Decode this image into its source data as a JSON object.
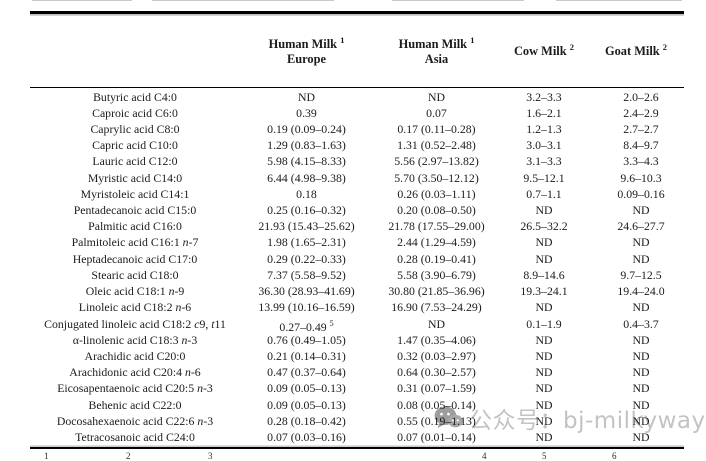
{
  "colors": {
    "rule": "#000000",
    "text": "#1b1b1b",
    "watermark_text": "#c3c3c3",
    "watermark_icon": "#8d8d8d"
  },
  "table": {
    "header": {
      "cols": [
        {
          "line1": "Human Milk",
          "sup": "1",
          "line2": "Europe"
        },
        {
          "line1": "Human Milk",
          "sup": "1",
          "line2": "Asia"
        },
        {
          "line1": "Cow Milk",
          "sup": "2",
          "line2": ""
        },
        {
          "line1": "Goat Milk",
          "sup": "2",
          "line2": ""
        }
      ]
    },
    "rows": [
      {
        "label": "Butyric acid C4:0",
        "values": [
          "ND",
          "ND",
          "3.2–3.3",
          "2.0–2.6"
        ]
      },
      {
        "label": "Caproic acid C6:0",
        "values": [
          "0.39",
          "0.07",
          "1.6–2.1",
          "2.4–2.9"
        ]
      },
      {
        "label": "Caprylic acid C8:0",
        "values": [
          "0.19 (0.09–0.24)",
          "0.17 (0.11–0.28)",
          "1.2–1.3",
          "2.7–2.7"
        ]
      },
      {
        "label": "Capric acid C10:0",
        "values": [
          "1.29 (0.83–1.63)",
          "1.31 (0.52–2.48)",
          "3.0–3.1",
          "8.4–9.7"
        ]
      },
      {
        "label": "Lauric acid C12:0",
        "values": [
          "5.98 (4.15–8.33)",
          "5.56 (2.97–13.82)",
          "3.1–3.3",
          "3.3–4.3"
        ]
      },
      {
        "label": "Myristic acid C14:0",
        "values": [
          "6.44 (4.98–9.38)",
          "5.70 (3.50–12.12)",
          "9.5–12.1",
          "9.6–10.3"
        ]
      },
      {
        "label": "Myristoleic acid C14:1",
        "values": [
          "0.18",
          "0.26 (0.03–1.11)",
          "0.7–1.1",
          "0.09–0.16"
        ]
      },
      {
        "label": "Pentadecanoic acid C15:0",
        "values": [
          "0.25 (0.16–0.32)",
          "0.20 (0.08–0.50)",
          "ND",
          "ND"
        ]
      },
      {
        "label": "Palmitic acid C16:0",
        "values": [
          "21.93 (15.43–25.62)",
          "21.78 (17.55–29.00)",
          "26.5–32.2",
          "24.6–27.7"
        ]
      },
      {
        "label": "Palmitoleic acid C16:1 n-7",
        "values": [
          "1.98 (1.65–2.31)",
          "2.44 (1.29–4.59)",
          "ND",
          "ND"
        ]
      },
      {
        "label": "Heptadecanoic acid C17:0",
        "values": [
          "0.29 (0.22–0.33)",
          "0.28 (0.19–0.41)",
          "ND",
          "ND"
        ]
      },
      {
        "label": "Stearic acid C18:0",
        "values": [
          "7.37 (5.58–9.52)",
          "5.58 (3.90–6.79)",
          "8.9–14.6",
          "9.7–12.5"
        ]
      },
      {
        "label": "Oleic acid C18:1 n-9",
        "values": [
          "36.30 (28.93–41.69)",
          "30.80 (21.85–36.96)",
          "19.3–24.1",
          "19.4–24.0"
        ]
      },
      {
        "label": "Linoleic acid C18:2 n-6",
        "values": [
          "13.99 (10.16–16.59)",
          "16.90 (7.53–24.29)",
          "ND",
          "ND"
        ]
      },
      {
        "label": "Conjugated linoleic acid C18:2 c9, t11",
        "values": [
          "0.27–0.49 ^5",
          "ND",
          "0.1–1.9",
          "0.4–3.7"
        ]
      },
      {
        "label": "α-linolenic acid C18:3 n-3",
        "values": [
          "0.76 (0.49–1.05)",
          "1.47 (0.35–4.06)",
          "ND",
          "ND"
        ]
      },
      {
        "label": "Arachidic acid C20:0",
        "values": [
          "0.21 (0.14–0.31)",
          "0.32 (0.03–2.97)",
          "ND",
          "ND"
        ]
      },
      {
        "label": "Arachidonic acid C20:4 n-6",
        "values": [
          "0.47 (0.37–0.64)",
          "0.64 (0.30–2.57)",
          "ND",
          "ND"
        ]
      },
      {
        "label": "Eicosapentaenoic acid C20:5 n-3",
        "values": [
          "0.09 (0.05–0.13)",
          "0.31 (0.07–1.59)",
          "ND",
          "ND"
        ]
      },
      {
        "label": "Behenic acid C22:0",
        "values": [
          "0.09 (0.05–0.13)",
          "0.08 (0.05–0.14)",
          "ND",
          "ND"
        ]
      },
      {
        "label": "Docosahexaenoic acid C22:6 n-3",
        "values": [
          "0.28 (0.18–0.42)",
          "0.55 (0.19–1.13)",
          "ND",
          "ND"
        ]
      },
      {
        "label": "Tetracosanoic acid C24:0",
        "values": [
          "0.07 (0.03–0.16)",
          "0.07 (0.01–0.14)",
          "ND",
          "ND"
        ]
      }
    ]
  },
  "footnote": {
    "markers": [
      "1",
      "2",
      "3",
      "4",
      "5",
      "6"
    ]
  },
  "watermark": {
    "text": "公众号：bj-milkyway",
    "icon": "wechat-icon"
  }
}
